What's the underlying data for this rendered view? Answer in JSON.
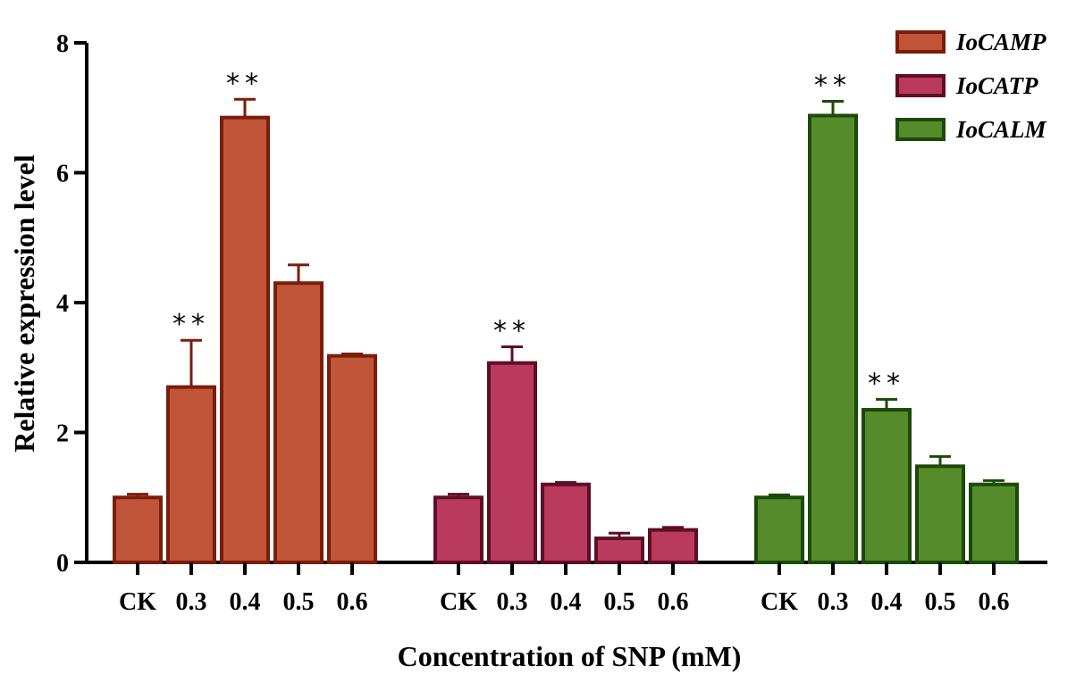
{
  "chart_data": {
    "type": "bar",
    "title": "",
    "xlabel": "Concentration of SNP (mM)",
    "ylabel": "Relative expression level",
    "ylim": [
      0,
      8
    ],
    "yticks": [
      0,
      2,
      4,
      6,
      8
    ],
    "categories": [
      "CK",
      "0.3",
      "0.4",
      "0.5",
      "0.6"
    ],
    "legend_position": "top-right",
    "series": [
      {
        "name": "IoCAMP",
        "fill": "#c0553a",
        "stroke": "#7a1d0a",
        "values": [
          1.0,
          2.7,
          6.85,
          4.3,
          3.18
        ],
        "errors": [
          0.05,
          0.72,
          0.28,
          0.28,
          0.03
        ],
        "significance": [
          "",
          "**",
          "**",
          "",
          ""
        ]
      },
      {
        "name": "IoCATP",
        "fill": "#b93a5c",
        "stroke": "#5e0f25",
        "values": [
          1.0,
          3.07,
          1.2,
          0.37,
          0.5
        ],
        "errors": [
          0.05,
          0.25,
          0.03,
          0.08,
          0.04
        ],
        "significance": [
          "",
          "**",
          "",
          "",
          ""
        ]
      },
      {
        "name": "IoCALM",
        "fill": "#558b2a",
        "stroke": "#1c4a08",
        "values": [
          1.0,
          6.88,
          2.35,
          1.48,
          1.2
        ],
        "errors": [
          0.04,
          0.22,
          0.16,
          0.15,
          0.06
        ],
        "significance": [
          "",
          "**",
          "**",
          "",
          ""
        ]
      }
    ]
  }
}
